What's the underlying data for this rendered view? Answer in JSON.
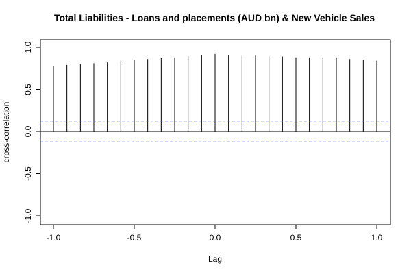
{
  "chart_data": {
    "type": "bar",
    "title": "Total Liabilities - Loans and placements (AUD bn) & New Vehicle Sales",
    "xlabel": "Lag",
    "ylabel": "cross-correlation",
    "xlim": [
      -1.0,
      1.0
    ],
    "ylim": [
      -1.0,
      1.0
    ],
    "x_ticks": [
      -1.0,
      -0.5,
      0.0,
      0.5,
      1.0
    ],
    "x_tick_labels": [
      "-1.0",
      "-0.5",
      "0.0",
      "0.5",
      "1.0"
    ],
    "y_ticks": [
      -1.0,
      -0.5,
      0.0,
      0.5,
      1.0
    ],
    "y_tick_labels": [
      "-1.0",
      "-0.5",
      "0.0",
      "0.5",
      "1.0"
    ],
    "lags": [
      -1.0,
      -0.9167,
      -0.8333,
      -0.75,
      -0.6667,
      -0.5833,
      -0.5,
      -0.4167,
      -0.3333,
      -0.25,
      -0.1667,
      -0.0833,
      0.0,
      0.0833,
      0.1667,
      0.25,
      0.3333,
      0.4167,
      0.5,
      0.5833,
      0.6667,
      0.75,
      0.8333,
      0.9167,
      1.0
    ],
    "values": [
      0.78,
      0.79,
      0.8,
      0.81,
      0.82,
      0.84,
      0.85,
      0.86,
      0.87,
      0.88,
      0.89,
      0.91,
      0.92,
      0.91,
      0.9,
      0.9,
      0.89,
      0.89,
      0.88,
      0.88,
      0.87,
      0.87,
      0.86,
      0.85,
      0.84
    ],
    "confidence_bounds": [
      0.125,
      -0.125
    ],
    "zero_line": 0,
    "grid": false,
    "colors": {
      "spike": "#000000",
      "confidence": "#6a6adf",
      "zero_line": "#000000",
      "frame": "#000000"
    }
  }
}
